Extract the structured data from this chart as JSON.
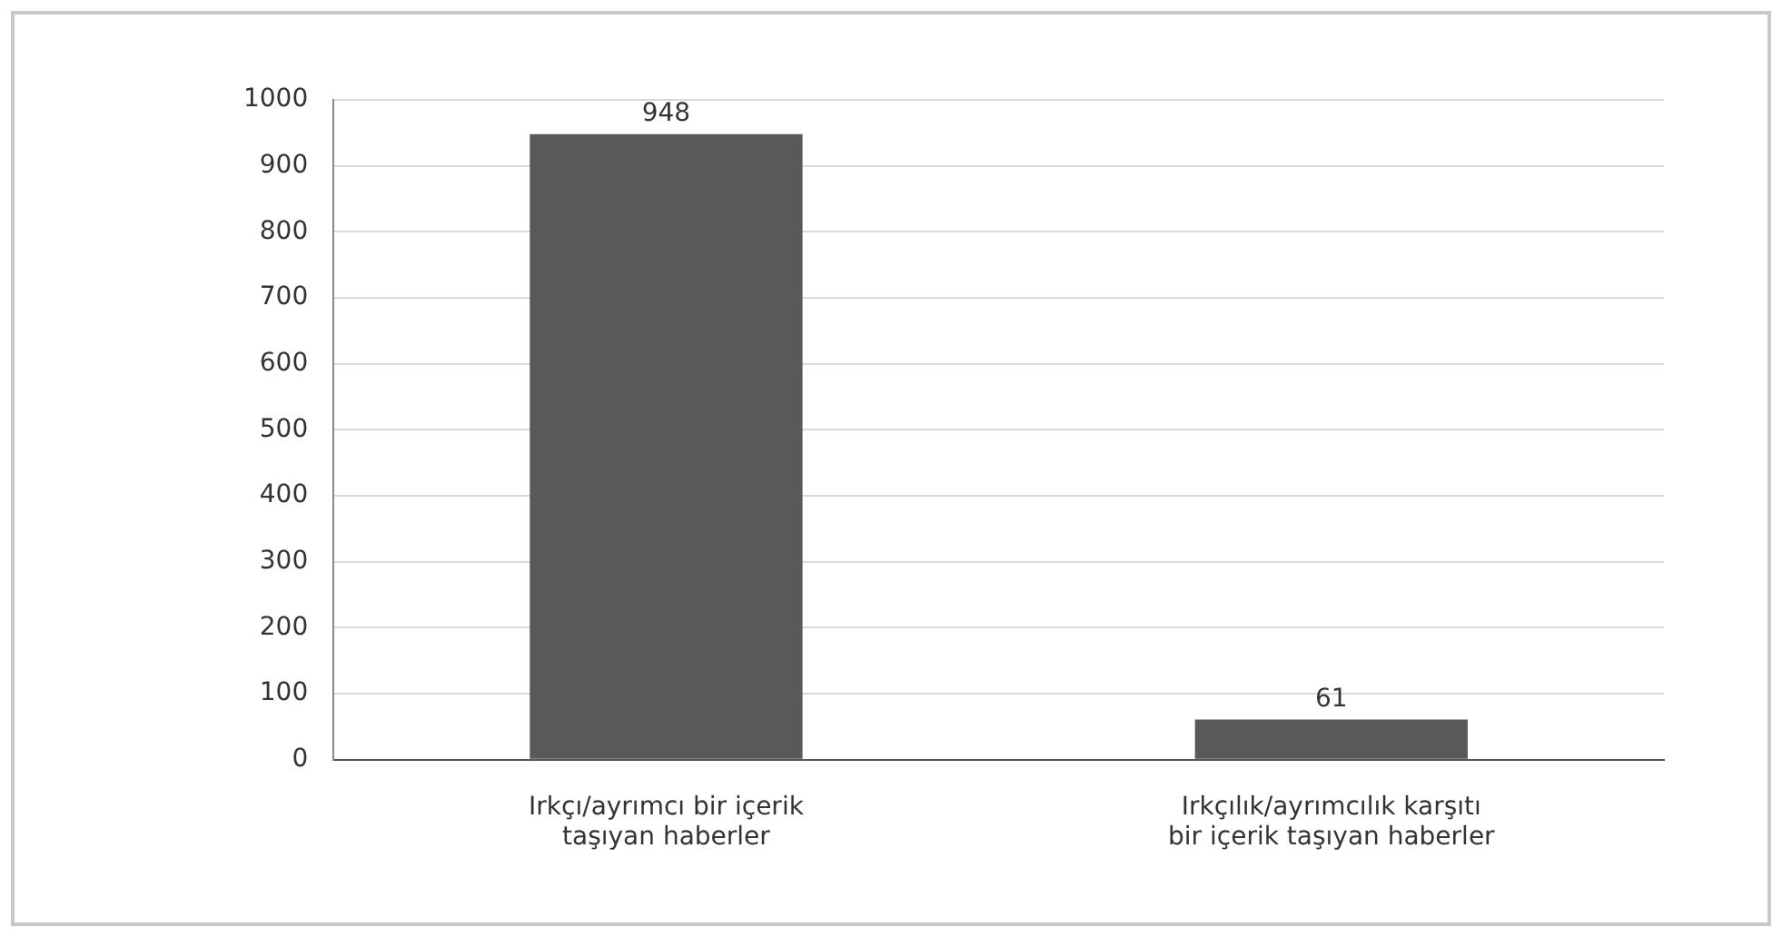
{
  "chart_data": {
    "type": "bar",
    "categories": [
      "Irkçı/ayrımcı bir içerik taşıyan haberler",
      "Irkçılık/ayrımcılık karşıtı bir içerik taşıyan haberler"
    ],
    "values": [
      948,
      61
    ],
    "color": "#595959",
    "ylim": [
      0,
      1000
    ],
    "yticks": [
      0,
      100,
      200,
      300,
      400,
      500,
      600,
      700,
      800,
      900,
      1000
    ],
    "grid": "y",
    "data_labels": true,
    "legend": false
  }
}
